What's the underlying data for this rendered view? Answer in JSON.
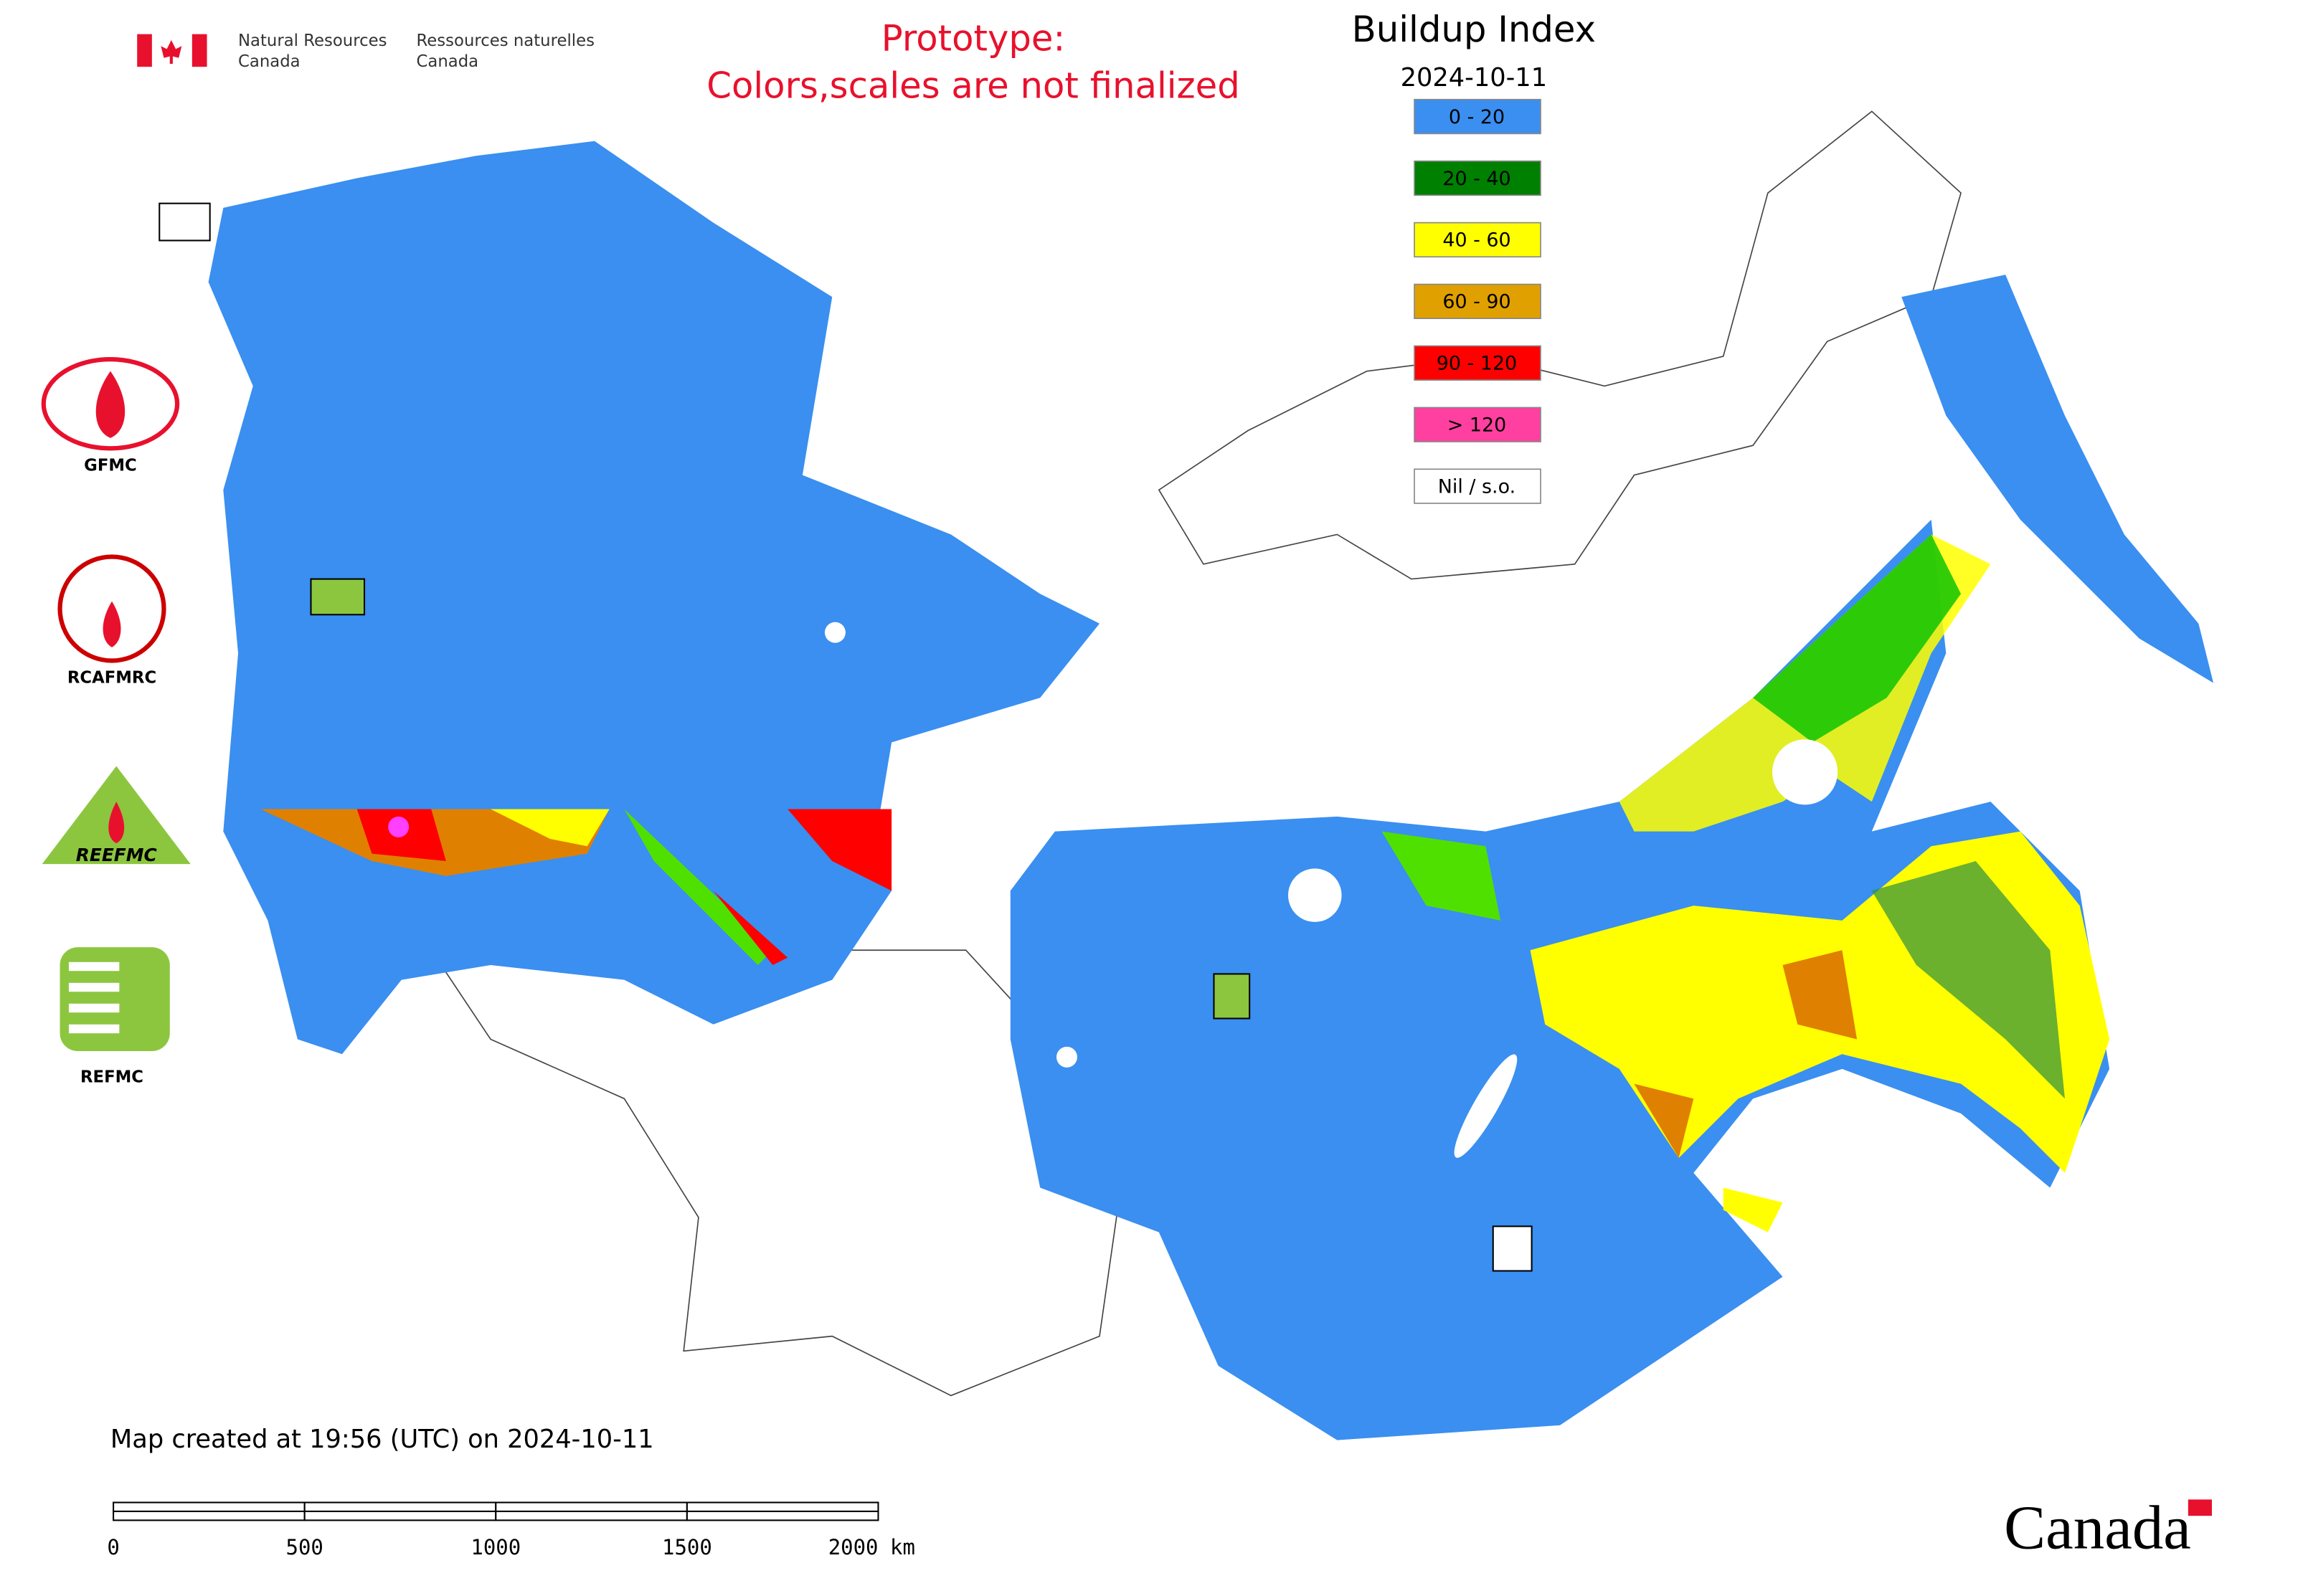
{
  "header": {
    "agency_en": [
      "Natural Resources",
      "Canada"
    ],
    "agency_fr": [
      "Ressources naturelles",
      "Canada"
    ],
    "notice": [
      "Prototype:",
      "Colors,scales are not finalized"
    ]
  },
  "legend": {
    "title": "Buildup Index",
    "date": "2024-10-11",
    "items": [
      {
        "label": "0 - 20",
        "color": "#3a8ff0"
      },
      {
        "label": "20 - 40",
        "color": "#008000"
      },
      {
        "label": "40 - 60",
        "color": "#ffff00"
      },
      {
        "label": "60 - 90",
        "color": "#e0a000"
      },
      {
        "label": "90 - 120",
        "color": "#ff0000"
      },
      {
        "label": "> 120",
        "color": "#ff40a0"
      },
      {
        "label": "Nil / s.o.",
        "color": "#ffffff"
      }
    ]
  },
  "organizations": [
    "GFMC",
    "RCAFMRC",
    "REEFMC",
    "REFMC"
  ],
  "footer": {
    "created": "Map created at 19:56 (UTC) on 2024-10-11",
    "scale_ticks": [
      "0",
      "500",
      "1000",
      "1500",
      "2000"
    ],
    "scale_unit": "km",
    "wordmark": "Canada"
  }
}
